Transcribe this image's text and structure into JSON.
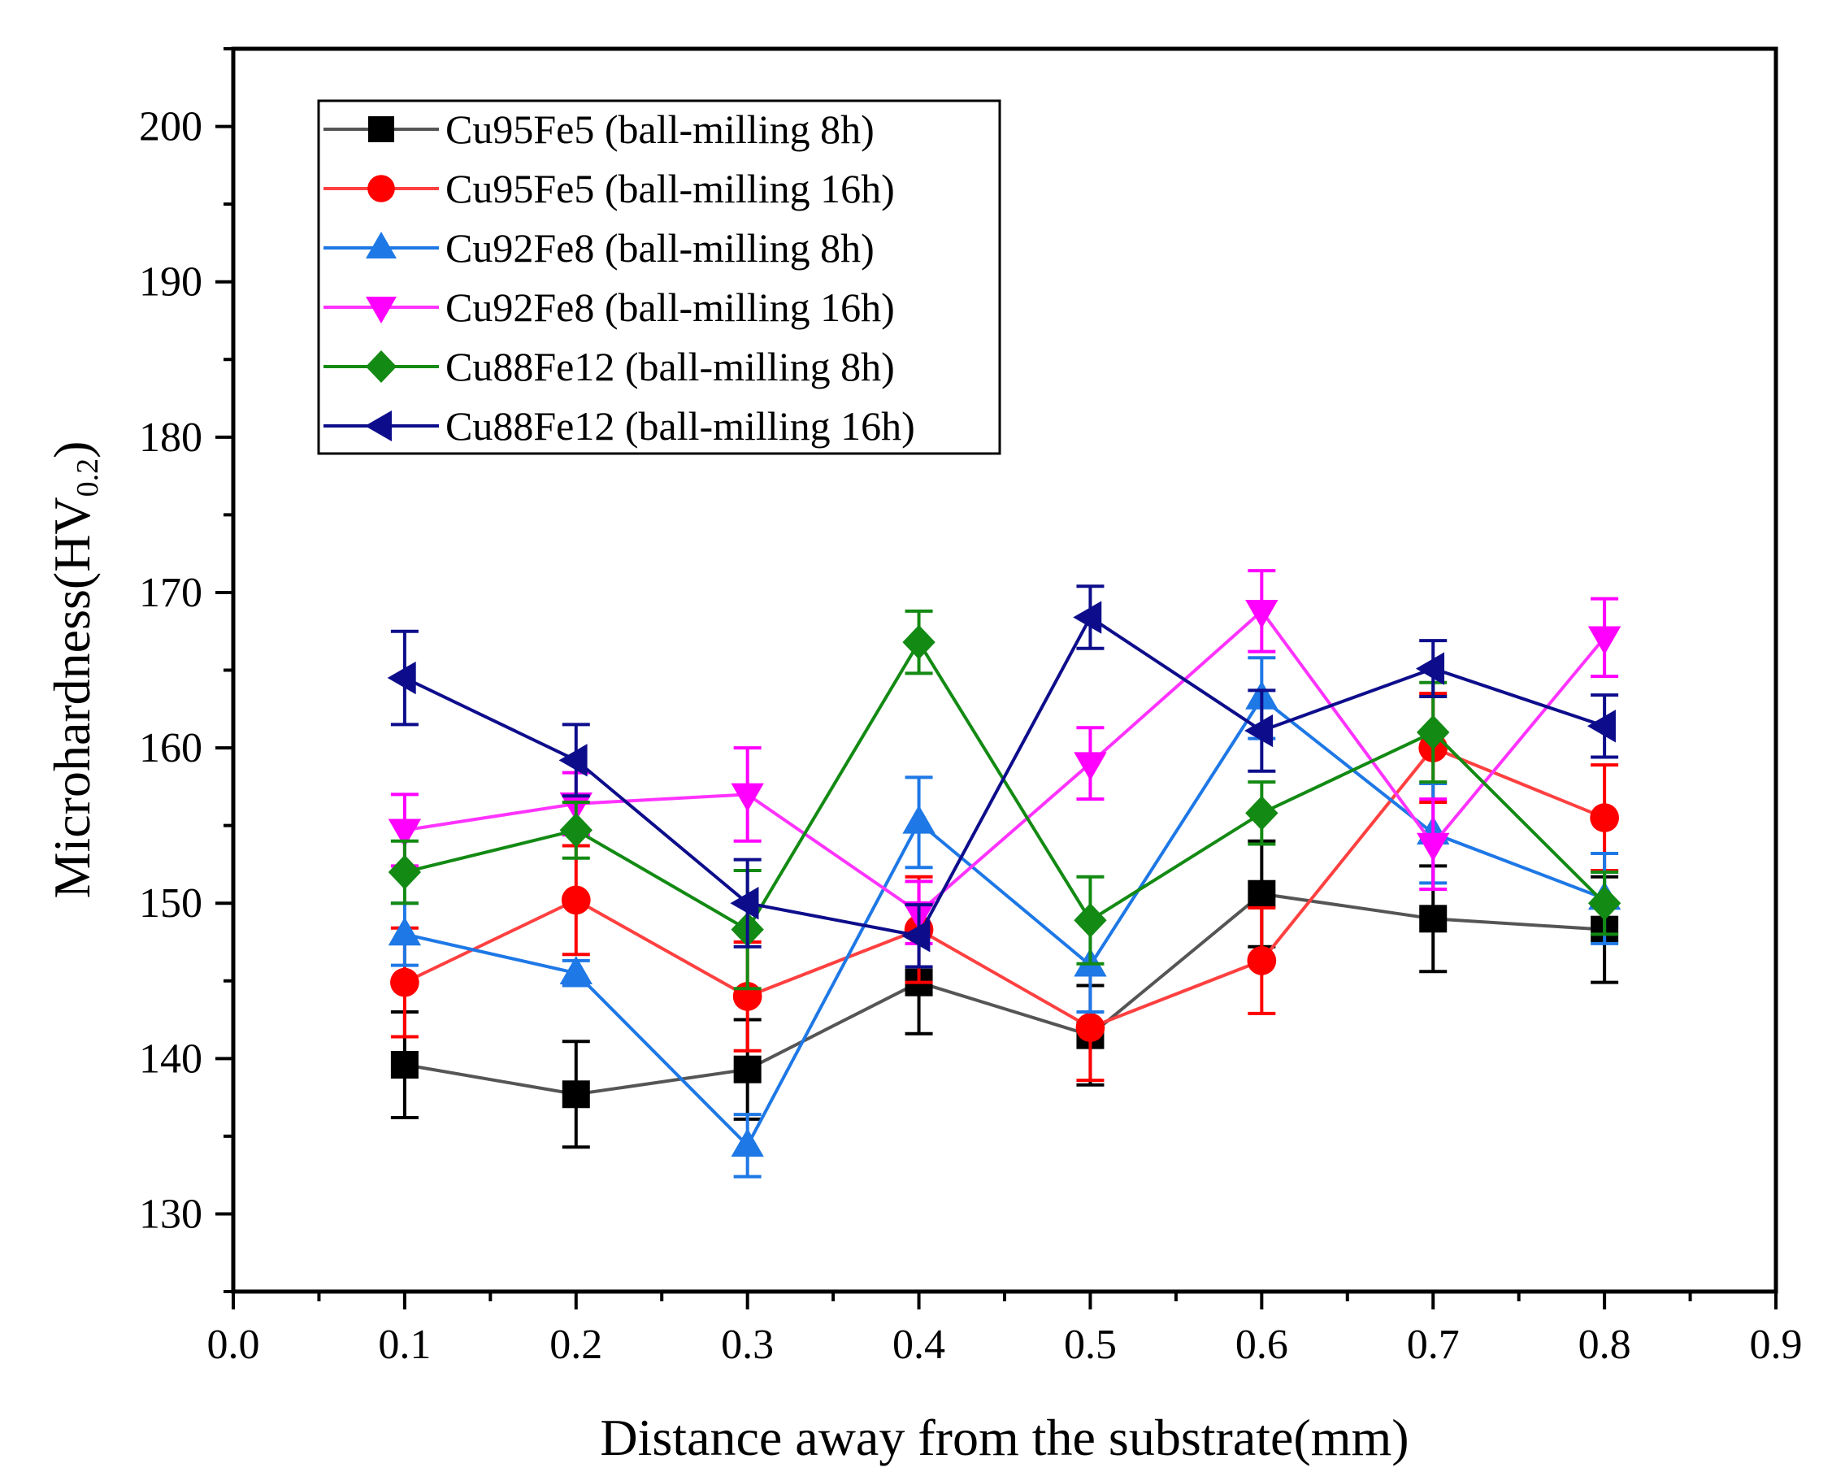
{
  "chart_data": {
    "type": "line",
    "xlabel": "Distance away from the substrate(mm)",
    "ylabel": "Microhardness(HV",
    "ylabel_sub": "0.2",
    "ylabel_close": ")",
    "xlim": [
      0.0,
      0.9
    ],
    "ylim": [
      125,
      205
    ],
    "xticks": [
      0.0,
      0.1,
      0.2,
      0.3,
      0.4,
      0.5,
      0.6,
      0.7,
      0.8,
      0.9
    ],
    "xtick_labels": [
      "0.0",
      "0.1",
      "0.2",
      "0.3",
      "0.4",
      "0.5",
      "0.6",
      "0.7",
      "0.8",
      "0.9"
    ],
    "yticks": [
      130,
      140,
      150,
      160,
      170,
      180,
      190,
      200
    ],
    "ytick_labels": [
      "130",
      "140",
      "150",
      "160",
      "170",
      "180",
      "190",
      "200"
    ],
    "legend_position": "top-left",
    "x": [
      0.1,
      0.2,
      0.3,
      0.4,
      0.5,
      0.6,
      0.7,
      0.8
    ],
    "series": [
      {
        "name": "Cu95Fe5 (ball-milling 8h)",
        "color": "#000000",
        "line_color": "#555555",
        "marker": "square",
        "values": [
          139.6,
          137.7,
          139.3,
          144.9,
          141.5,
          150.6,
          149.0,
          148.3
        ],
        "errors": [
          3.4,
          3.4,
          3.2,
          3.3,
          3.2,
          3.4,
          3.4,
          3.4
        ]
      },
      {
        "name": "Cu95Fe5 (ball-milling 16h)",
        "color": "#ff0000",
        "line_color": "#ff4040",
        "marker": "circle",
        "values": [
          144.9,
          150.2,
          144.0,
          148.3,
          142.0,
          146.3,
          160.0,
          155.5
        ],
        "errors": [
          3.5,
          3.5,
          3.5,
          3.4,
          3.4,
          3.4,
          3.5,
          3.4
        ]
      },
      {
        "name": "Cu92Fe8 (ball-milling 8h)",
        "color": "#1e78e6",
        "line_color": "#1e78e6",
        "marker": "triangle-up",
        "values": [
          148.0,
          145.5,
          134.4,
          155.2,
          146.0,
          163.2,
          154.5,
          150.3
        ],
        "errors": [
          2.0,
          0.8,
          2.0,
          2.9,
          3.0,
          2.6,
          3.2,
          2.9
        ]
      },
      {
        "name": "Cu92Fe8 (ball-milling 16h)",
        "color": "#ff00ff",
        "line_color": "#ff33ff",
        "marker": "triangle-down",
        "values": [
          154.7,
          156.4,
          157.0,
          149.4,
          159.0,
          168.8,
          153.8,
          167.1
        ],
        "errors": [
          2.3,
          2.0,
          3.0,
          2.0,
          2.3,
          2.6,
          2.9,
          2.5
        ]
      },
      {
        "name": "Cu88Fe12 (ball-milling 8h)",
        "color": "#138a13",
        "line_color": "#138a13",
        "marker": "diamond",
        "values": [
          152.0,
          154.7,
          148.3,
          166.8,
          148.9,
          155.8,
          161.0,
          150.0
        ],
        "errors": [
          2.0,
          1.8,
          3.8,
          2.0,
          2.8,
          2.0,
          3.2,
          2.0
        ]
      },
      {
        "name": "Cu88Fe12 (ball-milling 16h)",
        "color": "#0d0d8c",
        "line_color": "#0d0d8c",
        "marker": "triangle-left",
        "values": [
          164.5,
          159.2,
          150.0,
          147.9,
          168.4,
          161.1,
          165.1,
          161.4
        ],
        "errors": [
          3.0,
          2.3,
          2.8,
          2.0,
          2.0,
          2.6,
          1.8,
          2.0
        ]
      }
    ]
  }
}
